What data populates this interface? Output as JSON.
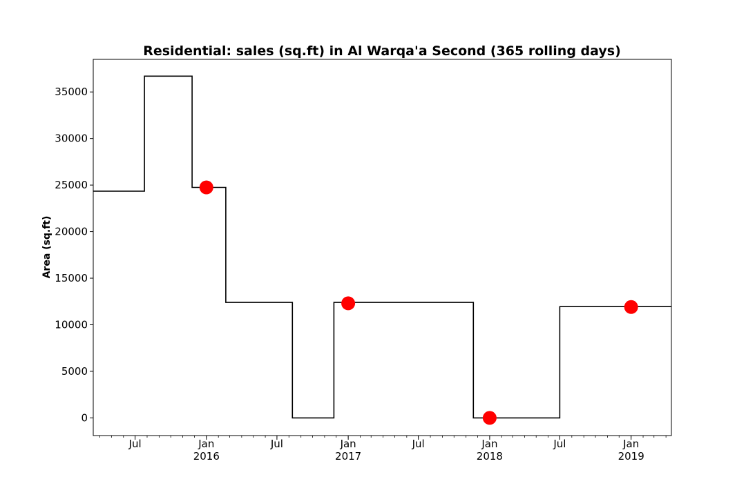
{
  "chart_data": {
    "type": "line",
    "drawstyle": "step-post",
    "title": "Residential: sales (sq.ft) in Al Warqa'a Second (365 rolling days)",
    "xlabel": "",
    "ylabel": "Area (sq.ft)",
    "xlim": [
      "2015-03-15",
      "2019-04-15"
    ],
    "ylim": [
      -1900,
      38500
    ],
    "grid": false,
    "legend": "none",
    "series": [
      {
        "color": "#000000",
        "points": [
          {
            "x": "2015-03-15",
            "y": 24350
          },
          {
            "x": "2015-07-25",
            "y": 36700
          },
          {
            "x": "2015-11-25",
            "y": 24750
          },
          {
            "x": "2016-02-20",
            "y": 12400
          },
          {
            "x": "2016-08-10",
            "y": 0
          },
          {
            "x": "2016-11-25",
            "y": 12400
          },
          {
            "x": "2017-11-20",
            "y": 0
          },
          {
            "x": "2018-07-01",
            "y": 11950
          },
          {
            "x": "2019-04-15",
            "y": 11950
          }
        ]
      }
    ],
    "markers": {
      "color": "#ff0000",
      "points": [
        {
          "x": "2016-01-01",
          "y": 24750
        },
        {
          "x": "2017-01-01",
          "y": 12300
        },
        {
          "x": "2018-01-01",
          "y": 0
        },
        {
          "x": "2019-01-01",
          "y": 11900
        }
      ]
    },
    "yticks": [
      0,
      5000,
      10000,
      15000,
      20000,
      25000,
      30000,
      35000
    ],
    "yticklabels": [
      "0",
      "5000",
      "10000",
      "15000",
      "20000",
      "25000",
      "30000",
      "35000"
    ],
    "xticks": [
      {
        "x": "2015-07-01",
        "line1": "Jul",
        "line2": ""
      },
      {
        "x": "2016-01-01",
        "line1": "Jan",
        "line2": "2016"
      },
      {
        "x": "2016-07-01",
        "line1": "Jul",
        "line2": ""
      },
      {
        "x": "2017-01-01",
        "line1": "Jan",
        "line2": "2017"
      },
      {
        "x": "2017-07-01",
        "line1": "Jul",
        "line2": ""
      },
      {
        "x": "2018-01-01",
        "line1": "Jan",
        "line2": "2018"
      },
      {
        "x": "2018-07-01",
        "line1": "Jul",
        "line2": ""
      },
      {
        "x": "2019-01-01",
        "line1": "Jan",
        "line2": "2019"
      }
    ]
  }
}
